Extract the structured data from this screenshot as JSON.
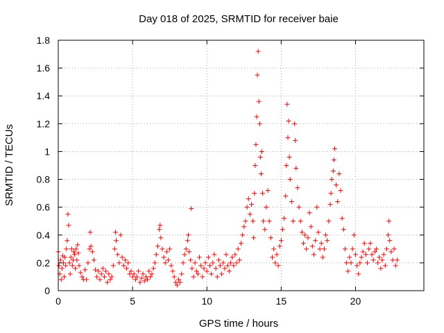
{
  "chart_data": {
    "type": "scatter",
    "title": "Day 018 of 2025, SRMTID for receiver baie",
    "xlabel": "GPS time / hours",
    "ylabel": "SRMTID / TECUs",
    "xlim": [
      0,
      24.6
    ],
    "ylim": [
      0,
      1.8
    ],
    "x_ticks": [
      0,
      5,
      10,
      15,
      20
    ],
    "x_tick_labels": [
      "0",
      "5",
      "10",
      "15",
      "20"
    ],
    "y_ticks": [
      0,
      0.2,
      0.4,
      0.6,
      0.8,
      1.0,
      1.2,
      1.4,
      1.6,
      1.8
    ],
    "y_tick_labels": [
      "0",
      "0.2",
      "0.4",
      "0.6",
      "0.8",
      "1",
      "1.2",
      "1.4",
      "1.6",
      "1.8"
    ],
    "grid": true,
    "marker": "plus",
    "series": [
      {
        "name": "SRMTID",
        "color": "#ff0000",
        "points": [
          [
            0.0,
            0.28
          ],
          [
            0.05,
            0.18
          ],
          [
            0.1,
            0.12
          ],
          [
            0.15,
            0.22
          ],
          [
            0.2,
            0.08
          ],
          [
            0.25,
            0.16
          ],
          [
            0.3,
            0.25
          ],
          [
            0.35,
            0.2
          ],
          [
            0.4,
            0.1
          ],
          [
            0.45,
            0.24
          ],
          [
            0.5,
            0.18
          ],
          [
            0.55,
            0.3
          ],
          [
            0.6,
            0.36
          ],
          [
            0.65,
            0.55
          ],
          [
            0.7,
            0.47
          ],
          [
            0.75,
            0.2
          ],
          [
            0.8,
            0.12
          ],
          [
            0.85,
            0.24
          ],
          [
            0.9,
            0.3
          ],
          [
            0.95,
            0.18
          ],
          [
            1.0,
            0.22
          ],
          [
            1.05,
            0.28
          ],
          [
            1.1,
            0.26
          ],
          [
            1.15,
            0.16
          ],
          [
            1.2,
            0.3
          ],
          [
            1.25,
            0.22
          ],
          [
            1.3,
            0.33
          ],
          [
            1.35,
            0.27
          ],
          [
            1.4,
            0.18
          ],
          [
            1.5,
            0.13
          ],
          [
            1.6,
            0.1
          ],
          [
            1.7,
            0.08
          ],
          [
            1.8,
            0.15
          ],
          [
            1.9,
            0.08
          ],
          [
            2.0,
            0.2
          ],
          [
            2.1,
            0.3
          ],
          [
            2.15,
            0.42
          ],
          [
            2.2,
            0.32
          ],
          [
            2.3,
            0.28
          ],
          [
            2.4,
            0.22
          ],
          [
            2.5,
            0.15
          ],
          [
            2.6,
            0.1
          ],
          [
            2.7,
            0.14
          ],
          [
            2.8,
            0.08
          ],
          [
            2.9,
            0.12
          ],
          [
            3.0,
            0.16
          ],
          [
            3.1,
            0.1
          ],
          [
            3.2,
            0.14
          ],
          [
            3.3,
            0.06
          ],
          [
            3.4,
            0.12
          ],
          [
            3.5,
            0.08
          ],
          [
            3.6,
            0.1
          ],
          [
            3.7,
            0.18
          ],
          [
            3.8,
            0.3
          ],
          [
            3.85,
            0.42
          ],
          [
            3.9,
            0.36
          ],
          [
            4.0,
            0.26
          ],
          [
            4.1,
            0.2
          ],
          [
            4.2,
            0.4
          ],
          [
            4.3,
            0.24
          ],
          [
            4.4,
            0.18
          ],
          [
            4.5,
            0.22
          ],
          [
            4.6,
            0.16
          ],
          [
            4.7,
            0.2
          ],
          [
            4.8,
            0.12
          ],
          [
            4.9,
            0.14
          ],
          [
            5.0,
            0.1
          ],
          [
            5.1,
            0.12
          ],
          [
            5.2,
            0.08
          ],
          [
            5.3,
            0.1
          ],
          [
            5.4,
            0.14
          ],
          [
            5.5,
            0.06
          ],
          [
            5.6,
            0.09
          ],
          [
            5.7,
            0.12
          ],
          [
            5.8,
            0.07
          ],
          [
            5.9,
            0.1
          ],
          [
            6.0,
            0.08
          ],
          [
            6.1,
            0.14
          ],
          [
            6.2,
            0.1
          ],
          [
            6.3,
            0.12
          ],
          [
            6.4,
            0.16
          ],
          [
            6.5,
            0.2
          ],
          [
            6.6,
            0.26
          ],
          [
            6.7,
            0.32
          ],
          [
            6.8,
            0.44
          ],
          [
            6.85,
            0.47
          ],
          [
            6.9,
            0.38
          ],
          [
            7.0,
            0.3
          ],
          [
            7.1,
            0.24
          ],
          [
            7.2,
            0.2
          ],
          [
            7.3,
            0.28
          ],
          [
            7.4,
            0.22
          ],
          [
            7.5,
            0.3
          ],
          [
            7.6,
            0.18
          ],
          [
            7.7,
            0.14
          ],
          [
            7.8,
            0.1
          ],
          [
            7.9,
            0.06
          ],
          [
            8.0,
            0.04
          ],
          [
            8.1,
            0.08
          ],
          [
            8.2,
            0.06
          ],
          [
            8.3,
            0.12
          ],
          [
            8.4,
            0.2
          ],
          [
            8.5,
            0.26
          ],
          [
            8.6,
            0.3
          ],
          [
            8.7,
            0.36
          ],
          [
            8.75,
            0.4
          ],
          [
            8.8,
            0.28
          ],
          [
            8.9,
            0.22
          ],
          [
            8.95,
            0.59
          ],
          [
            9.0,
            0.16
          ],
          [
            9.1,
            0.1
          ],
          [
            9.2,
            0.2
          ],
          [
            9.3,
            0.14
          ],
          [
            9.4,
            0.12
          ],
          [
            9.5,
            0.24
          ],
          [
            9.6,
            0.18
          ],
          [
            9.7,
            0.1
          ],
          [
            9.8,
            0.16
          ],
          [
            9.9,
            0.2
          ],
          [
            10.0,
            0.14
          ],
          [
            10.1,
            0.24
          ],
          [
            10.2,
            0.18
          ],
          [
            10.3,
            0.12
          ],
          [
            10.4,
            0.2
          ],
          [
            10.5,
            0.26
          ],
          [
            10.6,
            0.16
          ],
          [
            10.7,
            0.1
          ],
          [
            10.8,
            0.22
          ],
          [
            10.9,
            0.18
          ],
          [
            11.0,
            0.12
          ],
          [
            11.1,
            0.2
          ],
          [
            11.2,
            0.16
          ],
          [
            11.3,
            0.26
          ],
          [
            11.4,
            0.18
          ],
          [
            11.5,
            0.14
          ],
          [
            11.6,
            0.2
          ],
          [
            11.7,
            0.24
          ],
          [
            11.8,
            0.18
          ],
          [
            11.9,
            0.26
          ],
          [
            12.0,
            0.2
          ],
          [
            12.1,
            0.3
          ],
          [
            12.2,
            0.22
          ],
          [
            12.3,
            0.34
          ],
          [
            12.4,
            0.4
          ],
          [
            12.5,
            0.46
          ],
          [
            12.6,
            0.5
          ],
          [
            12.7,
            0.6
          ],
          [
            12.8,
            0.66
          ],
          [
            12.9,
            0.55
          ],
          [
            13.0,
            0.62
          ],
          [
            13.1,
            0.5
          ],
          [
            13.15,
            0.38
          ],
          [
            13.2,
            0.7
          ],
          [
            13.25,
            0.9
          ],
          [
            13.3,
            1.05
          ],
          [
            13.35,
            1.25
          ],
          [
            13.4,
            1.55
          ],
          [
            13.45,
            1.72
          ],
          [
            13.5,
            1.36
          ],
          [
            13.55,
            1.2
          ],
          [
            13.6,
            0.96
          ],
          [
            13.65,
            0.84
          ],
          [
            13.7,
            1.0
          ],
          [
            13.75,
            0.7
          ],
          [
            13.8,
            0.5
          ],
          [
            13.9,
            0.44
          ],
          [
            14.0,
            0.6
          ],
          [
            14.1,
            0.72
          ],
          [
            14.2,
            0.5
          ],
          [
            14.3,
            0.38
          ],
          [
            14.4,
            0.24
          ],
          [
            14.5,
            0.3
          ],
          [
            14.6,
            0.2
          ],
          [
            14.7,
            0.26
          ],
          [
            14.8,
            0.18
          ],
          [
            14.9,
            0.32
          ],
          [
            15.0,
            0.36
          ],
          [
            15.1,
            0.44
          ],
          [
            15.2,
            0.52
          ],
          [
            15.3,
            0.68
          ],
          [
            15.35,
            0.9
          ],
          [
            15.4,
            1.34
          ],
          [
            15.45,
            1.1
          ],
          [
            15.5,
            1.22
          ],
          [
            15.55,
            0.96
          ],
          [
            15.6,
            0.8
          ],
          [
            15.7,
            0.64
          ],
          [
            15.8,
            0.5
          ],
          [
            15.9,
            1.2
          ],
          [
            15.95,
            1.08
          ],
          [
            16.0,
            0.88
          ],
          [
            16.1,
            0.74
          ],
          [
            16.2,
            0.6
          ],
          [
            16.3,
            0.5
          ],
          [
            16.4,
            0.42
          ],
          [
            16.5,
            0.34
          ],
          [
            16.6,
            0.4
          ],
          [
            16.7,
            0.3
          ],
          [
            16.8,
            0.38
          ],
          [
            16.9,
            0.56
          ],
          [
            17.0,
            0.46
          ],
          [
            17.1,
            0.32
          ],
          [
            17.2,
            0.26
          ],
          [
            17.3,
            0.36
          ],
          [
            17.4,
            0.6
          ],
          [
            17.5,
            0.42
          ],
          [
            17.6,
            0.3
          ],
          [
            17.7,
            0.34
          ],
          [
            17.8,
            0.24
          ],
          [
            17.9,
            0.3
          ],
          [
            18.0,
            0.4
          ],
          [
            18.1,
            0.36
          ],
          [
            18.2,
            0.5
          ],
          [
            18.3,
            0.62
          ],
          [
            18.35,
            0.7
          ],
          [
            18.4,
            0.8
          ],
          [
            18.5,
            0.86
          ],
          [
            18.55,
            0.94
          ],
          [
            18.6,
            1.02
          ],
          [
            18.7,
            0.76
          ],
          [
            18.8,
            0.64
          ],
          [
            18.9,
            0.84
          ],
          [
            19.0,
            0.72
          ],
          [
            19.1,
            0.52
          ],
          [
            19.2,
            0.44
          ],
          [
            19.3,
            0.3
          ],
          [
            19.4,
            0.2
          ],
          [
            19.5,
            0.14
          ],
          [
            19.6,
            0.24
          ],
          [
            19.7,
            0.2
          ],
          [
            19.8,
            0.3
          ],
          [
            19.9,
            0.4
          ],
          [
            20.0,
            0.26
          ],
          [
            20.1,
            0.18
          ],
          [
            20.2,
            0.12
          ],
          [
            20.3,
            0.2
          ],
          [
            20.4,
            0.24
          ],
          [
            20.5,
            0.28
          ],
          [
            20.6,
            0.34
          ],
          [
            20.7,
            0.26
          ],
          [
            20.8,
            0.2
          ],
          [
            20.9,
            0.3
          ],
          [
            21.0,
            0.34
          ],
          [
            21.1,
            0.26
          ],
          [
            21.2,
            0.22
          ],
          [
            21.3,
            0.28
          ],
          [
            21.4,
            0.3
          ],
          [
            21.5,
            0.2
          ],
          [
            21.6,
            0.24
          ],
          [
            21.7,
            0.16
          ],
          [
            21.8,
            0.22
          ],
          [
            21.9,
            0.26
          ],
          [
            22.0,
            0.18
          ],
          [
            22.1,
            0.3
          ],
          [
            22.2,
            0.4
          ],
          [
            22.25,
            0.5
          ],
          [
            22.3,
            0.36
          ],
          [
            22.4,
            0.28
          ],
          [
            22.5,
            0.22
          ],
          [
            22.6,
            0.3
          ],
          [
            22.7,
            0.18
          ],
          [
            22.8,
            0.22
          ]
        ]
      }
    ]
  }
}
